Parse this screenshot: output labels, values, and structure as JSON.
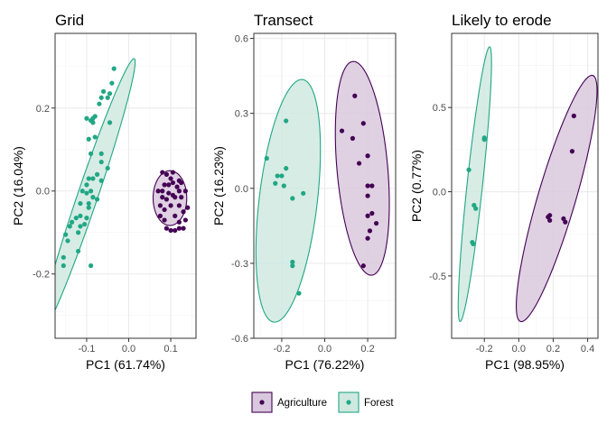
{
  "colors": {
    "agriculture": "#440154",
    "forest": "#21A784",
    "agriculture_fill": "#d9c8dd",
    "forest_fill": "#cfe9e0",
    "panel_border": "#333333",
    "grid_major": "#ebebeb",
    "grid_minor": "#f5f5f5"
  },
  "legend": {
    "position": "bottom",
    "items": [
      {
        "label": "Agriculture",
        "color": "#440154",
        "fill": "#d9c8dd"
      },
      {
        "label": "Forest",
        "color": "#21A784",
        "fill": "#cfe9e0"
      }
    ]
  },
  "chart_data": [
    {
      "type": "scatter",
      "title": "Grid",
      "xlabel": "PC1 (61.74%)",
      "ylabel": "PC2 (16.04%)",
      "xlim": [
        -0.175,
        0.16
      ],
      "ylim": [
        -0.355,
        0.38
      ],
      "xticks": [
        -0.1,
        0.0,
        0.1
      ],
      "yticks": [
        -0.2,
        0.0,
        0.2
      ],
      "xtick_labels": [
        "-0.1",
        "0.0",
        "0.1"
      ],
      "ytick_labels": [
        "-0.2",
        "0.0",
        "0.2"
      ],
      "grid": true,
      "series": [
        {
          "name": "Forest",
          "ellipse": {
            "cx": -0.098,
            "cy": -0.013,
            "a": 0.35,
            "b": 0.024,
            "angle_deg": 71.5
          },
          "points": [
            [
              -0.035,
              0.295
            ],
            [
              -0.04,
              0.26
            ],
            [
              -0.045,
              0.235
            ],
            [
              -0.06,
              0.24
            ],
            [
              -0.05,
              0.225
            ],
            [
              -0.065,
              0.225
            ],
            [
              -0.07,
              0.21
            ],
            [
              -0.08,
              0.18
            ],
            [
              -0.085,
              0.175
            ],
            [
              -0.09,
              0.17
            ],
            [
              -0.1,
              0.175
            ],
            [
              -0.085,
              0.165
            ],
            [
              -0.045,
              0.165
            ],
            [
              -0.08,
              0.13
            ],
            [
              -0.095,
              0.125
            ],
            [
              -0.09,
              0.09
            ],
            [
              -0.065,
              0.09
            ],
            [
              -0.065,
              0.07
            ],
            [
              -0.05,
              0.055
            ],
            [
              -0.075,
              0.04
            ],
            [
              -0.085,
              0.03
            ],
            [
              -0.095,
              0.03
            ],
            [
              -0.065,
              0.025
            ],
            [
              -0.1,
              0.015
            ],
            [
              -0.11,
              0.0
            ],
            [
              -0.09,
              0.0
            ],
            [
              -0.1,
              -0.005
            ],
            [
              -0.085,
              -0.015
            ],
            [
              -0.075,
              -0.02
            ],
            [
              -0.095,
              -0.03
            ],
            [
              -0.115,
              -0.03
            ],
            [
              -0.095,
              -0.04
            ],
            [
              -0.115,
              -0.06
            ],
            [
              -0.1,
              -0.065
            ],
            [
              -0.125,
              -0.065
            ],
            [
              -0.135,
              -0.075
            ],
            [
              -0.105,
              -0.08
            ],
            [
              -0.115,
              -0.085
            ],
            [
              -0.14,
              -0.085
            ],
            [
              -0.15,
              -0.105
            ],
            [
              -0.12,
              -0.1
            ],
            [
              -0.145,
              -0.12
            ],
            [
              -0.12,
              -0.145
            ],
            [
              -0.155,
              -0.16
            ],
            [
              -0.09,
              -0.18
            ],
            [
              -0.155,
              -0.18
            ]
          ]
        },
        {
          "name": "Agriculture",
          "ellipse": {
            "cx": 0.098,
            "cy": -0.017,
            "a": 0.066,
            "b": 0.04,
            "angle_deg": 90
          },
          "points": [
            [
              0.08,
              0.045
            ],
            [
              0.09,
              0.04
            ],
            [
              0.105,
              0.045
            ],
            [
              0.1,
              0.03
            ],
            [
              0.12,
              0.025
            ],
            [
              0.125,
              0.02
            ],
            [
              0.085,
              0.015
            ],
            [
              0.095,
              0.015
            ],
            [
              0.105,
              0.02
            ],
            [
              0.115,
              0.01
            ],
            [
              0.07,
              0.0
            ],
            [
              0.08,
              0.0
            ],
            [
              0.095,
              -0.005
            ],
            [
              0.12,
              0.0
            ],
            [
              0.135,
              0.0
            ],
            [
              0.105,
              -0.01
            ],
            [
              0.08,
              -0.015
            ],
            [
              0.09,
              -0.02
            ],
            [
              0.11,
              -0.015
            ],
            [
              0.125,
              -0.015
            ],
            [
              0.075,
              -0.035
            ],
            [
              0.1,
              -0.035
            ],
            [
              0.12,
              -0.035
            ],
            [
              0.14,
              -0.04
            ],
            [
              0.085,
              -0.045
            ],
            [
              0.13,
              -0.05
            ],
            [
              0.075,
              -0.06
            ],
            [
              0.11,
              -0.06
            ],
            [
              0.085,
              -0.07
            ],
            [
              0.12,
              -0.075
            ],
            [
              0.135,
              -0.07
            ],
            [
              0.09,
              -0.09
            ],
            [
              0.1,
              -0.095
            ],
            [
              0.11,
              -0.095
            ],
            [
              0.12,
              -0.09
            ],
            [
              0.13,
              -0.09
            ]
          ]
        }
      ]
    },
    {
      "type": "scatter",
      "title": "Transect",
      "xlabel": "PC1 (76.22%)",
      "ylabel": "PC2 (16.23%)",
      "xlim": [
        -0.33,
        0.33
      ],
      "ylim": [
        -0.6,
        0.62
      ],
      "xticks": [
        -0.2,
        0.0,
        0.2
      ],
      "yticks": [
        -0.6,
        -0.3,
        0.0,
        0.3,
        0.6
      ],
      "xtick_labels": [
        "-0.2",
        "0.0",
        "0.2"
      ],
      "ytick_labels": [
        "-0.6",
        "-0.3",
        "0.0",
        "0.3",
        "0.6"
      ],
      "grid": true,
      "series": [
        {
          "name": "Forest",
          "ellipse": {
            "cx": -0.17,
            "cy": -0.05,
            "a": 0.49,
            "b": 0.135,
            "angle_deg": 82
          },
          "points": [
            [
              -0.18,
              0.27
            ],
            [
              -0.27,
              0.12
            ],
            [
              -0.18,
              0.08
            ],
            [
              -0.22,
              0.05
            ],
            [
              -0.2,
              0.05
            ],
            [
              -0.23,
              0.02
            ],
            [
              -0.19,
              0.01
            ],
            [
              -0.1,
              -0.02
            ],
            [
              -0.15,
              -0.04
            ],
            [
              -0.15,
              -0.295
            ],
            [
              -0.15,
              -0.31
            ],
            [
              -0.12,
              -0.42
            ]
          ]
        },
        {
          "name": "Agriculture",
          "ellipse": {
            "cx": 0.175,
            "cy": 0.08,
            "a": 0.43,
            "b": 0.118,
            "angle_deg": 96
          },
          "points": [
            [
              0.14,
              0.37
            ],
            [
              0.18,
              0.26
            ],
            [
              0.08,
              0.23
            ],
            [
              0.13,
              0.2
            ],
            [
              0.2,
              0.13
            ],
            [
              0.16,
              0.1
            ],
            [
              0.2,
              0.01
            ],
            [
              0.22,
              0.01
            ],
            [
              0.2,
              -0.03
            ],
            [
              0.22,
              -0.1
            ],
            [
              0.2,
              -0.11
            ],
            [
              0.24,
              -0.14
            ],
            [
              0.21,
              -0.17
            ],
            [
              0.2,
              -0.2
            ],
            [
              0.18,
              -0.31
            ]
          ]
        }
      ]
    },
    {
      "type": "scatter",
      "title": "Likely to erode",
      "xlabel": "PC1 (98.95%)",
      "ylabel": "PC2 (0.77%)",
      "xlim": [
        -0.39,
        0.46
      ],
      "ylim": [
        -0.87,
        0.94
      ],
      "xticks": [
        -0.2,
        0.0,
        0.2,
        0.4
      ],
      "yticks": [
        -0.5,
        0.0,
        0.5
      ],
      "xtick_labels": [
        "-0.2",
        "0.0",
        "0.2",
        "0.4"
      ],
      "ytick_labels": [
        "-0.5",
        "0.0",
        "0.5"
      ],
      "grid": true,
      "series": [
        {
          "name": "Forest",
          "ellipse": {
            "cx": -0.255,
            "cy": 0.045,
            "a": 0.82,
            "b": 0.045,
            "angle_deg": 84
          },
          "points": [
            [
              -0.2,
              0.32
            ],
            [
              -0.2,
              0.31
            ],
            [
              -0.29,
              0.13
            ],
            [
              -0.26,
              -0.08
            ],
            [
              -0.25,
              -0.1
            ],
            [
              -0.27,
              -0.3
            ],
            [
              -0.265,
              -0.31
            ]
          ]
        },
        {
          "name": "Agriculture",
          "ellipse": {
            "cx": 0.22,
            "cy": -0.04,
            "a": 0.76,
            "b": 0.11,
            "angle_deg": 74
          },
          "points": [
            [
              0.32,
              0.45
            ],
            [
              0.31,
              0.24
            ],
            [
              0.18,
              -0.14
            ],
            [
              0.17,
              -0.15
            ],
            [
              0.18,
              -0.17
            ],
            [
              0.26,
              -0.16
            ],
            [
              0.27,
              -0.18
            ]
          ]
        }
      ]
    }
  ]
}
